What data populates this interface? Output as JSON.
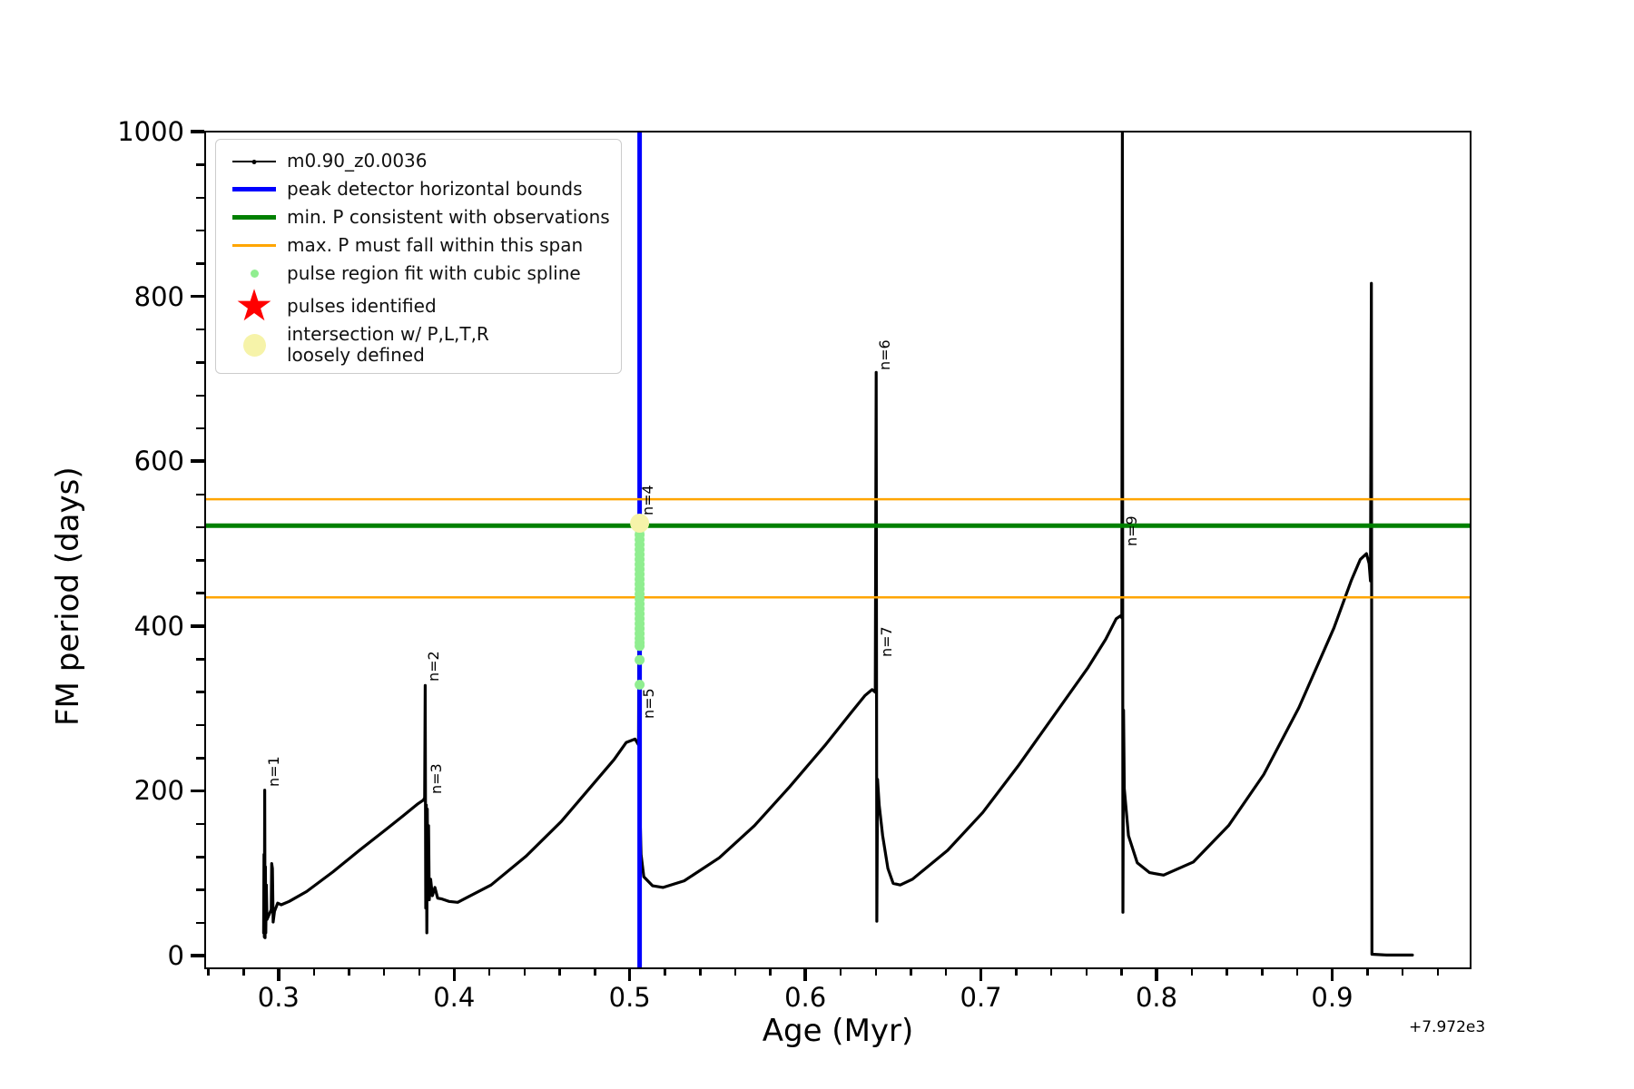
{
  "figure": {
    "xlabel": "Age (Myr)",
    "ylabel": "FM period (days)",
    "x_offset_text": "+7.972e3"
  },
  "legend": {
    "items": [
      {
        "label": "m0.90_z0.0036",
        "handle": "line-dot",
        "color": "#000000"
      },
      {
        "label": "peak detector horizontal bounds",
        "handle": "thick-line",
        "color": "#0000ff"
      },
      {
        "label": "min. P consistent with observations",
        "handle": "thick-line",
        "color": "#008000"
      },
      {
        "label": "max. P must fall within this span",
        "handle": "thin-line",
        "color": "#ffa500"
      },
      {
        "label": "pulse region fit with cubic spline",
        "handle": "small-dot",
        "color": "#90ee90"
      },
      {
        "label": "pulses identified",
        "handle": "star",
        "color": "#ff0000"
      },
      {
        "label": "intersection w/ P,L,T,R\nloosely defined",
        "handle": "big-dot",
        "color": "#f6f3a9"
      }
    ]
  },
  "chart_data": {
    "type": "line",
    "xlabel": "Age (Myr)",
    "ylabel": "FM period (days)",
    "x_offset": "+7.972e3",
    "xlim": [
      0.2577,
      0.9773
    ],
    "ylim": [
      -12,
      1001
    ],
    "x_major_ticks": [
      0.3,
      0.4,
      0.5,
      0.6,
      0.7,
      0.8,
      0.9
    ],
    "x_major_labels": [
      "0.3",
      "0.4",
      "0.5",
      "0.6",
      "0.7",
      "0.8",
      "0.9"
    ],
    "x_minor_ticks": [
      0.26,
      0.28,
      0.32,
      0.34,
      0.36,
      0.38,
      0.42,
      0.44,
      0.46,
      0.48,
      0.52,
      0.54,
      0.56,
      0.58,
      0.62,
      0.64,
      0.66,
      0.68,
      0.72,
      0.74,
      0.76,
      0.78,
      0.82,
      0.84,
      0.86,
      0.88,
      0.92,
      0.94,
      0.96
    ],
    "y_major_ticks": [
      0,
      200,
      400,
      600,
      800,
      1000
    ],
    "y_major_labels": [
      "0",
      "200",
      "400",
      "600",
      "800",
      "1000"
    ],
    "y_minor_ticks": [
      40,
      80,
      120,
      160,
      240,
      280,
      320,
      360,
      440,
      480,
      520,
      560,
      640,
      680,
      720,
      760,
      840,
      880,
      920,
      960
    ],
    "grid": false,
    "legend_position": "upper-left",
    "series": [
      {
        "name": "m0.90_z0.0036",
        "kind": "line",
        "color": "#000000",
        "width": 3.2,
        "points": [
          [
            0.2905,
            30
          ],
          [
            0.2907,
            125
          ],
          [
            0.2909,
            25
          ],
          [
            0.2911,
            203
          ],
          [
            0.2913,
            24
          ],
          [
            0.2915,
            110
          ],
          [
            0.2917,
            30
          ],
          [
            0.292,
            88
          ],
          [
            0.2924,
            46
          ],
          [
            0.2948,
            58
          ],
          [
            0.2951,
            114
          ],
          [
            0.2955,
            108
          ],
          [
            0.2959,
            43
          ],
          [
            0.2967,
            56
          ],
          [
            0.2985,
            66
          ],
          [
            0.3005,
            64
          ],
          [
            0.305,
            68
          ],
          [
            0.315,
            80
          ],
          [
            0.33,
            104
          ],
          [
            0.345,
            130
          ],
          [
            0.36,
            155
          ],
          [
            0.37,
            172
          ],
          [
            0.378,
            186
          ],
          [
            0.3815,
            191
          ],
          [
            0.3822,
            194
          ],
          [
            0.3825,
            330
          ],
          [
            0.3828,
            60
          ],
          [
            0.3831,
            185
          ],
          [
            0.3834,
            30
          ],
          [
            0.3837,
            180
          ],
          [
            0.384,
            95
          ],
          [
            0.3844,
            160
          ],
          [
            0.3848,
            70
          ],
          [
            0.3856,
            95
          ],
          [
            0.3866,
            75
          ],
          [
            0.388,
            85
          ],
          [
            0.3896,
            72
          ],
          [
            0.392,
            71
          ],
          [
            0.396,
            68
          ],
          [
            0.401,
            67
          ],
          [
            0.42,
            88
          ],
          [
            0.44,
            123
          ],
          [
            0.46,
            165
          ],
          [
            0.48,
            215
          ],
          [
            0.49,
            240
          ],
          [
            0.497,
            261
          ],
          [
            0.502,
            265
          ],
          [
            0.504,
            258
          ],
          [
            0.5044,
            540
          ],
          [
            0.5047,
            60
          ],
          [
            0.505,
            158
          ],
          [
            0.5054,
            125
          ],
          [
            0.507,
            98
          ],
          [
            0.512,
            87
          ],
          [
            0.518,
            85
          ],
          [
            0.53,
            93
          ],
          [
            0.55,
            121
          ],
          [
            0.57,
            160
          ],
          [
            0.59,
            207
          ],
          [
            0.61,
            257
          ],
          [
            0.625,
            297
          ],
          [
            0.633,
            318
          ],
          [
            0.637,
            325
          ],
          [
            0.6388,
            322
          ],
          [
            0.6393,
            710
          ],
          [
            0.6397,
            44
          ],
          [
            0.6401,
            216
          ],
          [
            0.641,
            185
          ],
          [
            0.643,
            148
          ],
          [
            0.646,
            108
          ],
          [
            0.649,
            90
          ],
          [
            0.653,
            88
          ],
          [
            0.66,
            95
          ],
          [
            0.68,
            130
          ],
          [
            0.7,
            176
          ],
          [
            0.72,
            232
          ],
          [
            0.74,
            292
          ],
          [
            0.76,
            352
          ],
          [
            0.77,
            386
          ],
          [
            0.776,
            411
          ],
          [
            0.7788,
            415
          ],
          [
            0.7792,
            412
          ],
          [
            0.7795,
            1001
          ],
          [
            0.7798,
            55
          ],
          [
            0.7802,
            300
          ],
          [
            0.7806,
            205
          ],
          [
            0.783,
            148
          ],
          [
            0.788,
            115
          ],
          [
            0.795,
            103
          ],
          [
            0.803,
            100
          ],
          [
            0.82,
            116
          ],
          [
            0.84,
            160
          ],
          [
            0.86,
            222
          ],
          [
            0.88,
            303
          ],
          [
            0.9,
            400
          ],
          [
            0.91,
            458
          ],
          [
            0.915,
            483
          ],
          [
            0.9185,
            490
          ],
          [
            0.92,
            478
          ],
          [
            0.9208,
            457
          ],
          [
            0.9213,
            818
          ],
          [
            0.9216,
            4
          ],
          [
            0.93,
            3
          ],
          [
            0.94,
            3
          ],
          [
            0.9447,
            3
          ]
        ]
      },
      {
        "name": "peak detector horizontal bounds",
        "kind": "vline",
        "color": "#0000ff",
        "width": 5,
        "x": 0.5046
      },
      {
        "name": "max. P must fall within this span",
        "kind": "hline",
        "color": "#ffa500",
        "width": 2.5,
        "ys": [
          556,
          437
        ]
      },
      {
        "name": "min. P consistent with observations",
        "kind": "hline",
        "color": "#008000",
        "width": 5,
        "ys": [
          524
        ]
      },
      {
        "name": "pulse region fit with cubic spline",
        "kind": "scatter",
        "color": "#90ee90",
        "radius": 5.5,
        "x": 0.5046,
        "values": [
          525,
          519,
          513,
          507,
          501,
          495,
          489,
          483,
          477,
          471,
          465,
          459,
          453,
          447,
          441,
          435,
          429,
          423,
          417,
          411,
          405,
          399,
          393,
          387,
          382,
          378,
          361,
          331
        ]
      },
      {
        "name": "pulses identified",
        "kind": "scatter",
        "color": "#ff0000",
        "radius": 0,
        "x": 0.5,
        "values": []
      },
      {
        "name": "intersection w/ P,L,T,R loosely defined",
        "kind": "scatter",
        "color": "#f6f3a9",
        "radius": 10.5,
        "x": 0.5046,
        "values": [
          527
        ]
      }
    ],
    "annotations": [
      {
        "text": "n=1",
        "x": 0.2911,
        "y": 205
      },
      {
        "text": "n=2",
        "x": 0.3825,
        "y": 333
      },
      {
        "text": "n=3",
        "x": 0.3838,
        "y": 196
      },
      {
        "text": "n=4",
        "x": 0.5044,
        "y": 534
      },
      {
        "text": "n=5",
        "x": 0.505,
        "y": 287
      },
      {
        "text": "n=6",
        "x": 0.6393,
        "y": 710
      },
      {
        "text": "n=7",
        "x": 0.64,
        "y": 362
      },
      {
        "text": "n=9",
        "x": 0.7797,
        "y": 497
      }
    ]
  }
}
